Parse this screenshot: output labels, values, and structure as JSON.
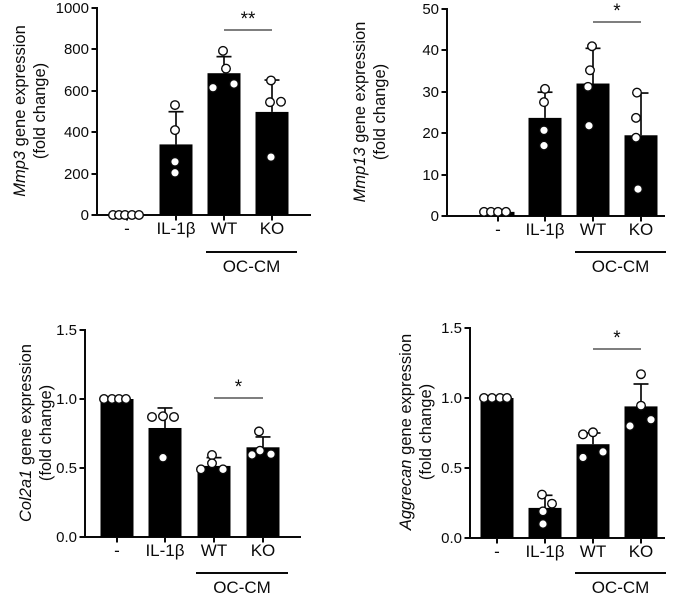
{
  "chart_data": [
    {
      "type": "bar",
      "panel": "top-left",
      "ylabel_gene": "Mmp3",
      "ylabel_rest": " gene expression",
      "ylabel_line2": "(fold change)",
      "categories": [
        "-",
        "IL-1β",
        "WT",
        "KO"
      ],
      "group_label": "OC-CM",
      "group_span": [
        "WT",
        "KO"
      ],
      "ylim": [
        0,
        1000
      ],
      "yticks": [
        0,
        200,
        400,
        600,
        800,
        1000
      ],
      "ytick_labels": [
        "0",
        "200",
        "400",
        "600",
        "800",
        "1000"
      ],
      "bar_color": "#000000",
      "values": [
        3,
        341,
        685,
        498
      ],
      "error_top": [
        null,
        499,
        765,
        652
      ],
      "points": [
        [
          {
            "v": 0,
            "dx": -14
          },
          {
            "v": 0,
            "dx": -8
          },
          {
            "v": 0,
            "dx": -2
          },
          {
            "v": 0,
            "dx": 5
          },
          {
            "v": 0,
            "dx": 12
          }
        ],
        [
          {
            "v": 531,
            "dx": -1
          },
          {
            "v": 410,
            "dx": -1
          },
          {
            "v": 257,
            "dx": -1
          },
          {
            "v": 204,
            "dx": -1
          }
        ],
        [
          {
            "v": 793,
            "dx": -1
          },
          {
            "v": 707,
            "dx": 2
          },
          {
            "v": 615,
            "dx": -11
          },
          {
            "v": 633,
            "dx": 10
          }
        ],
        [
          {
            "v": 650,
            "dx": -1
          },
          {
            "v": 545,
            "dx": -2
          },
          {
            "v": 547,
            "dx": 9
          },
          {
            "v": 280,
            "dx": -1
          }
        ]
      ],
      "significance": {
        "label": "**",
        "from": "WT",
        "to": "KO"
      }
    },
    {
      "type": "bar",
      "panel": "top-right",
      "ylabel_gene": "Mmp13",
      "ylabel_rest": " gene expression",
      "ylabel_line2": "(fold change)",
      "categories": [
        "-",
        "IL-1β",
        "WT",
        "KO"
      ],
      "group_label": "OC-CM",
      "group_span": [
        "WT",
        "KO"
      ],
      "ylim": [
        0,
        50
      ],
      "yticks": [
        0,
        10,
        20,
        30,
        40,
        50
      ],
      "ytick_labels": [
        "0",
        "10",
        "20",
        "30",
        "40",
        "50"
      ],
      "bar_color": "#000000",
      "values": [
        1,
        23.7,
        32,
        19.5
      ],
      "error_top": [
        null,
        29.9,
        40.5,
        29.7
      ],
      "points": [
        [
          {
            "v": 1,
            "dx": -14
          },
          {
            "v": 1,
            "dx": -7
          },
          {
            "v": 1,
            "dx": 0
          },
          {
            "v": 1,
            "dx": 8
          }
        ],
        [
          {
            "v": 30.7,
            "dx": 0
          },
          {
            "v": 27.5,
            "dx": -1
          },
          {
            "v": 20.7,
            "dx": -1
          },
          {
            "v": 17,
            "dx": -1
          }
        ],
        [
          {
            "v": 41,
            "dx": -1
          },
          {
            "v": 35.2,
            "dx": -3
          },
          {
            "v": 31.2,
            "dx": -5
          },
          {
            "v": 21.8,
            "dx": -4
          }
        ],
        [
          {
            "v": 29.8,
            "dx": -4
          },
          {
            "v": 23.7,
            "dx": -5
          },
          {
            "v": 18.9,
            "dx": -5
          },
          {
            "v": 6.5,
            "dx": -3
          }
        ]
      ],
      "significance": {
        "label": "*",
        "from": "WT",
        "to": "KO"
      }
    },
    {
      "type": "bar",
      "panel": "bottom-left",
      "ylabel_gene": "Col2a1",
      "ylabel_rest": " gene expression",
      "ylabel_line2": "(fold change)",
      "categories": [
        "-",
        "IL-1β",
        "WT",
        "KO"
      ],
      "group_label": "OC-CM",
      "group_span": [
        "WT",
        "KO"
      ],
      "ylim": [
        0,
        1.5
      ],
      "yticks": [
        0,
        0.5,
        1.0,
        1.5
      ],
      "ytick_labels": [
        "0.0",
        "0.5",
        "1.0",
        "1.5"
      ],
      "bar_color": "#000000",
      "values": [
        1.0,
        0.79,
        0.515,
        0.65
      ],
      "error_top": [
        null,
        0.935,
        0.575,
        0.725
      ],
      "points": [
        [
          {
            "v": 1.0,
            "dx": -13
          },
          {
            "v": 1.0,
            "dx": -5
          },
          {
            "v": 1.0,
            "dx": 2
          },
          {
            "v": 1.0,
            "dx": 9
          }
        ],
        [
          {
            "v": 0.87,
            "dx": -13
          },
          {
            "v": 0.875,
            "dx": -2
          },
          {
            "v": 0.87,
            "dx": 9
          },
          {
            "v": 0.575,
            "dx": -2
          }
        ],
        [
          {
            "v": 0.594,
            "dx": -2
          },
          {
            "v": 0.534,
            "dx": -2
          },
          {
            "v": 0.49,
            "dx": -13
          },
          {
            "v": 0.49,
            "dx": 9
          }
        ],
        [
          {
            "v": 0.765,
            "dx": -4
          },
          {
            "v": 0.625,
            "dx": -3
          },
          {
            "v": 0.595,
            "dx": -11
          },
          {
            "v": 0.6,
            "dx": 8
          }
        ]
      ],
      "significance": {
        "label": "*",
        "from": "WT",
        "to": "KO"
      }
    },
    {
      "type": "bar",
      "panel": "bottom-right",
      "ylabel_gene": "Aggrecan",
      "ylabel_rest": " gene expression",
      "ylabel_line2": "(fold change)",
      "categories": [
        "-",
        "IL-1β",
        "WT",
        "KO"
      ],
      "group_label": "OC-CM",
      "group_span": [
        "WT",
        "KO"
      ],
      "ylim": [
        0,
        1.5
      ],
      "yticks": [
        0,
        0.5,
        1.0,
        1.5
      ],
      "ytick_labels": [
        "0.0",
        "0.5",
        "1.0",
        "1.5"
      ],
      "bar_color": "#000000",
      "values": [
        1.0,
        0.215,
        0.67,
        0.94
      ],
      "error_top": [
        null,
        0.305,
        0.75,
        1.1
      ],
      "points": [
        [
          {
            "v": 1.0,
            "dx": -13
          },
          {
            "v": 1.0,
            "dx": -5
          },
          {
            "v": 1.0,
            "dx": 3
          },
          {
            "v": 1.0,
            "dx": 10
          }
        ],
        [
          {
            "v": 0.31,
            "dx": -3
          },
          {
            "v": 0.245,
            "dx": 7
          },
          {
            "v": 0.19,
            "dx": -2
          },
          {
            "v": 0.1,
            "dx": -2
          }
        ],
        [
          {
            "v": 0.74,
            "dx": -10
          },
          {
            "v": 0.755,
            "dx": 0
          },
          {
            "v": 0.575,
            "dx": -10
          },
          {
            "v": 0.615,
            "dx": 10
          }
        ],
        [
          {
            "v": 1.17,
            "dx": 0
          },
          {
            "v": 0.945,
            "dx": 0
          },
          {
            "v": 0.8,
            "dx": -11
          },
          {
            "v": 0.845,
            "dx": 10
          }
        ]
      ],
      "significance": {
        "label": "*",
        "from": "WT",
        "to": "KO"
      }
    }
  ],
  "colors": {
    "bar": "#000000",
    "axis": "#0a0a0a",
    "sig_line": "#555555",
    "point_fill": "#ffffff",
    "point_stroke": "#0a0a0a"
  }
}
